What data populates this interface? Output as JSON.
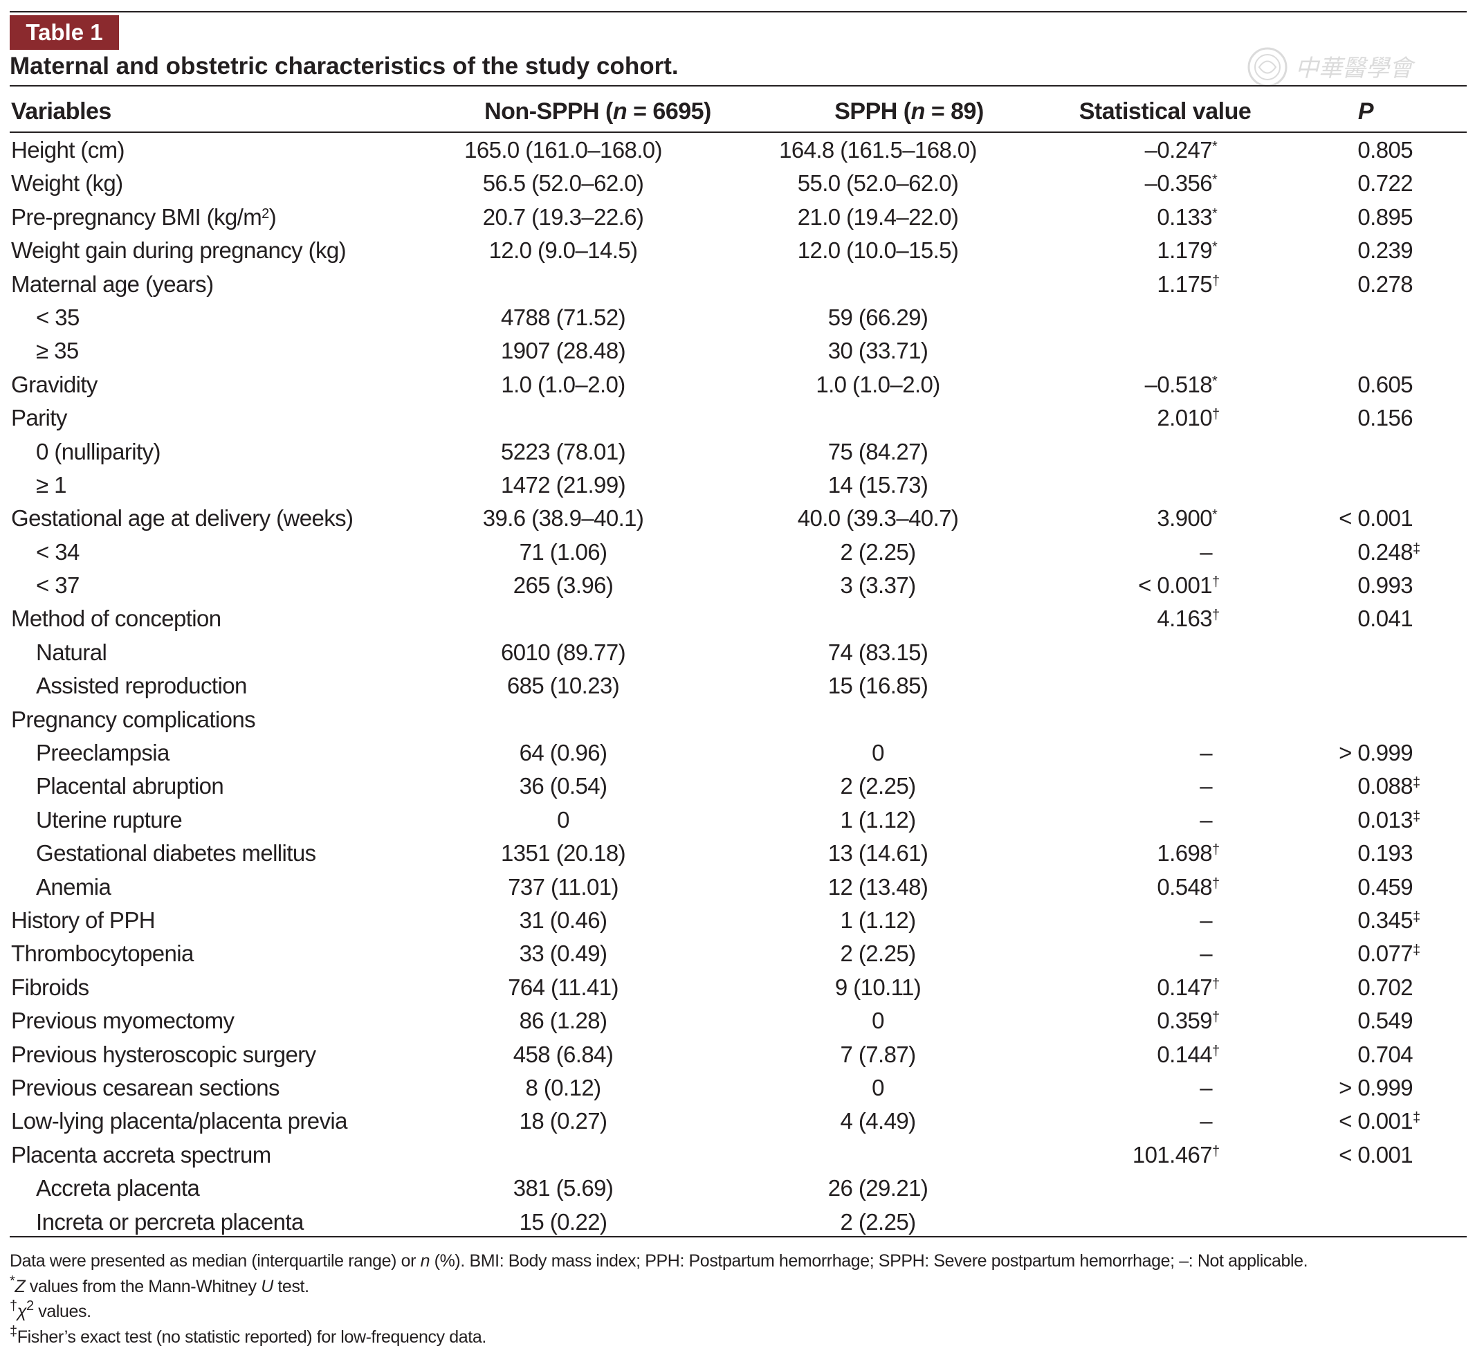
{
  "table_label": "Table 1",
  "caption": "Maternal and obstetric characteristics of the study cohort.",
  "watermark_text": "中華醫學會",
  "headers": {
    "variables": "Variables",
    "non_spph": "Non-SPPH (n = 6695)",
    "spph": "SPPH (n = 89)",
    "statistical_value": "Statistical value",
    "p": "P"
  },
  "rows": [
    {
      "variable": "Height (cm)",
      "indent": false,
      "non_spph": "165.0 (161.0–168.0)",
      "spph": "164.8 (161.5–168.0)",
      "stat": "–0.247",
      "stat_mark": "*",
      "p": "0.805",
      "p_mark": ""
    },
    {
      "variable": "Weight (kg)",
      "indent": false,
      "non_spph": "56.5 (52.0–62.0)",
      "spph": "55.0 (52.0–62.0)",
      "stat": "–0.356",
      "stat_mark": "*",
      "p": "0.722",
      "p_mark": ""
    },
    {
      "variable": "Pre-pregnancy BMI (kg/m",
      "var_sup": "2",
      "var_tail": ")",
      "indent": false,
      "non_spph": "20.7 (19.3–22.6)",
      "spph": "21.0 (19.4–22.0)",
      "stat": "0.133",
      "stat_mark": "*",
      "p": "0.895",
      "p_mark": ""
    },
    {
      "variable": "Weight gain during pregnancy (kg)",
      "indent": false,
      "non_spph": "12.0 (9.0–14.5)",
      "spph": "12.0 (10.0–15.5)",
      "stat": "1.179",
      "stat_mark": "*",
      "p": "0.239",
      "p_mark": ""
    },
    {
      "variable": "Maternal age (years)",
      "indent": false,
      "non_spph": "",
      "spph": "",
      "stat": "1.175",
      "stat_mark": "†",
      "p": "0.278",
      "p_mark": ""
    },
    {
      "variable": "< 35",
      "indent": true,
      "non_spph": "4788 (71.52)",
      "spph": "59 (66.29)",
      "stat": "",
      "stat_mark": "",
      "p": "",
      "p_mark": ""
    },
    {
      "variable": "≥ 35",
      "indent": true,
      "non_spph": "1907 (28.48)",
      "spph": "30 (33.71)",
      "stat": "",
      "stat_mark": "",
      "p": "",
      "p_mark": ""
    },
    {
      "variable": "Gravidity",
      "indent": false,
      "non_spph": "1.0 (1.0–2.0)",
      "spph": "1.0 (1.0–2.0)",
      "stat": "–0.518",
      "stat_mark": "*",
      "p": "0.605",
      "p_mark": ""
    },
    {
      "variable": "Parity",
      "indent": false,
      "non_spph": "",
      "spph": "",
      "stat": "2.010",
      "stat_mark": "†",
      "p": "0.156",
      "p_mark": ""
    },
    {
      "variable": "0 (nulliparity)",
      "indent": true,
      "non_spph": "5223 (78.01)",
      "spph": "75 (84.27)",
      "stat": "",
      "stat_mark": "",
      "p": "",
      "p_mark": ""
    },
    {
      "variable": "≥ 1",
      "indent": true,
      "non_spph": "1472 (21.99)",
      "spph": "14 (15.73)",
      "stat": "",
      "stat_mark": "",
      "p": "",
      "p_mark": ""
    },
    {
      "variable": "Gestational age at delivery (weeks)",
      "indent": false,
      "non_spph": "39.6 (38.9–40.1)",
      "spph": "40.0 (39.3–40.7)",
      "stat": "3.900",
      "stat_mark": "*",
      "p": "< 0.001",
      "p_mark": ""
    },
    {
      "variable": "< 34",
      "indent": true,
      "non_spph": "71 (1.06)",
      "spph": "2 (2.25)",
      "stat": "–",
      "stat_mark": "",
      "p": "0.248",
      "p_mark": "‡"
    },
    {
      "variable": "< 37",
      "indent": true,
      "non_spph": "265 (3.96)",
      "spph": "3 (3.37)",
      "stat": "< 0.001",
      "stat_mark": "†",
      "p": "0.993",
      "p_mark": ""
    },
    {
      "variable": "Method of conception",
      "indent": false,
      "non_spph": "",
      "spph": "",
      "stat": "4.163",
      "stat_mark": "†",
      "p": "0.041",
      "p_mark": ""
    },
    {
      "variable": "Natural",
      "indent": true,
      "non_spph": "6010 (89.77)",
      "spph": "74 (83.15)",
      "stat": "",
      "stat_mark": "",
      "p": "",
      "p_mark": ""
    },
    {
      "variable": "Assisted reproduction",
      "indent": true,
      "non_spph": "685 (10.23)",
      "spph": "15 (16.85)",
      "stat": "",
      "stat_mark": "",
      "p": "",
      "p_mark": ""
    },
    {
      "variable": "Pregnancy complications",
      "indent": false,
      "non_spph": "",
      "spph": "",
      "stat": "",
      "stat_mark": "",
      "p": "",
      "p_mark": ""
    },
    {
      "variable": "Preeclampsia",
      "indent": true,
      "non_spph": "64 (0.96)",
      "spph": "0",
      "stat": "–",
      "stat_mark": "",
      "p": "> 0.999",
      "p_mark": ""
    },
    {
      "variable": "Placental abruption",
      "indent": true,
      "non_spph": "36 (0.54)",
      "spph": "2 (2.25)",
      "stat": "–",
      "stat_mark": "",
      "p": "0.088",
      "p_mark": "‡"
    },
    {
      "variable": "Uterine rupture",
      "indent": true,
      "non_spph": "0",
      "spph": "1 (1.12)",
      "stat": "–",
      "stat_mark": "",
      "p": "0.013",
      "p_mark": "‡"
    },
    {
      "variable": "Gestational diabetes mellitus",
      "indent": true,
      "non_spph": "1351 (20.18)",
      "spph": "13 (14.61)",
      "stat": "1.698",
      "stat_mark": "†",
      "p": "0.193",
      "p_mark": ""
    },
    {
      "variable": "Anemia",
      "indent": true,
      "non_spph": "737 (11.01)",
      "spph": "12 (13.48)",
      "stat": "0.548",
      "stat_mark": "†",
      "p": "0.459",
      "p_mark": ""
    },
    {
      "variable": "History of PPH",
      "indent": false,
      "non_spph": "31 (0.46)",
      "spph": "1 (1.12)",
      "stat": "–",
      "stat_mark": "",
      "p": "0.345",
      "p_mark": "‡"
    },
    {
      "variable": "Thrombocytopenia",
      "indent": false,
      "non_spph": "33 (0.49)",
      "spph": "2 (2.25)",
      "stat": "–",
      "stat_mark": "",
      "p": "0.077",
      "p_mark": "‡"
    },
    {
      "variable": "Fibroids",
      "indent": false,
      "non_spph": "764 (11.41)",
      "spph": "9 (10.11)",
      "stat": "0.147",
      "stat_mark": "†",
      "p": "0.702",
      "p_mark": ""
    },
    {
      "variable": "Previous myomectomy",
      "indent": false,
      "non_spph": "86 (1.28)",
      "spph": "0",
      "stat": "0.359",
      "stat_mark": "†",
      "p": "0.549",
      "p_mark": ""
    },
    {
      "variable": "Previous hysteroscopic surgery",
      "indent": false,
      "non_spph": "458 (6.84)",
      "spph": "7 (7.87)",
      "stat": "0.144",
      "stat_mark": "†",
      "p": "0.704",
      "p_mark": ""
    },
    {
      "variable": "Previous cesarean sections",
      "indent": false,
      "non_spph": "8 (0.12)",
      "spph": "0",
      "stat": "–",
      "stat_mark": "",
      "p": "> 0.999",
      "p_mark": ""
    },
    {
      "variable": "Low-lying placenta/placenta previa",
      "indent": false,
      "non_spph": "18 (0.27)",
      "spph": "4 (4.49)",
      "stat": "–",
      "stat_mark": "",
      "p": "< 0.001",
      "p_mark": "‡"
    },
    {
      "variable": "Placenta accreta spectrum",
      "indent": false,
      "non_spph": "",
      "spph": "",
      "stat": "101.467",
      "stat_mark": "†",
      "p": "< 0.001",
      "p_mark": ""
    },
    {
      "variable": "Accreta placenta",
      "indent": true,
      "non_spph": "381 (5.69)",
      "spph": "26 (29.21)",
      "stat": "",
      "stat_mark": "",
      "p": "",
      "p_mark": ""
    },
    {
      "variable": "Increta or percreta placenta",
      "indent": true,
      "non_spph": "15 (0.22)",
      "spph": "2 (2.25)",
      "stat": "",
      "stat_mark": "",
      "p": "",
      "p_mark": ""
    }
  ],
  "footnotes": {
    "main": "Data were presented as median (interquartile range) or n (%). BMI: Body mass index; PPH: Postpartum hemorrhage; SPPH: Severe postpartum hemorrhage; –: Not applicable.",
    "star": "Z values from the Mann-Whitney U test.",
    "dagger": "χ2 values.",
    "ddagger": "Fisher’s exact test (no statistic reported) for low-frequency data."
  },
  "colors": {
    "label_background": "#8b2a2e",
    "text": "#231f20"
  }
}
